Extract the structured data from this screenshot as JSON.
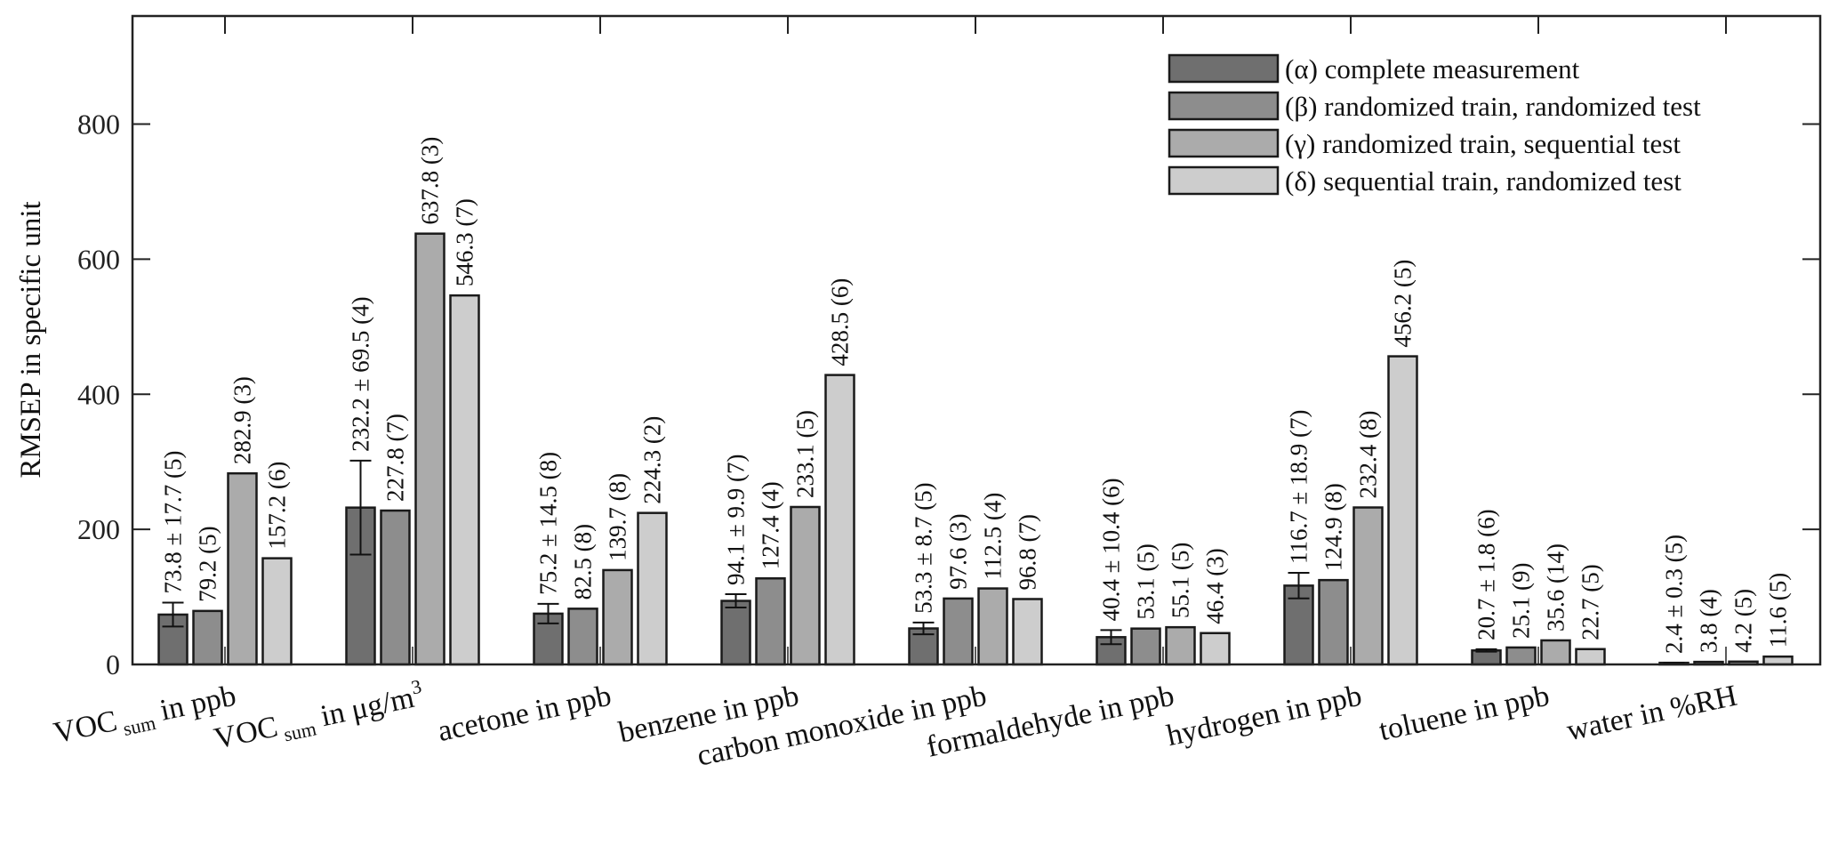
{
  "chart_data": {
    "type": "bar",
    "title": "",
    "xlabel": "",
    "ylabel": "RMSEP in specific unit",
    "ylim": [
      0,
      960
    ],
    "yticks": [
      0,
      200,
      400,
      600,
      800
    ],
    "grid": false,
    "legend_placement": "top-right",
    "categories": [
      {
        "pre": "VOC",
        "sub": "sum",
        "post": " in ppb",
        "sup": ""
      },
      {
        "pre": "VOC",
        "sub": "sum",
        "post": " in μg/m",
        "sup": "3"
      },
      {
        "pre": "acetone in ppb",
        "sub": "",
        "post": "",
        "sup": ""
      },
      {
        "pre": "benzene in ppb",
        "sub": "",
        "post": "",
        "sup": ""
      },
      {
        "pre": "carbon monoxide in ppb",
        "sub": "",
        "post": "",
        "sup": ""
      },
      {
        "pre": "formaldehyde in ppb",
        "sub": "",
        "post": "",
        "sup": ""
      },
      {
        "pre": "hydrogen in ppb",
        "sub": "",
        "post": "",
        "sup": ""
      },
      {
        "pre": "toluene in ppb",
        "sub": "",
        "post": "",
        "sup": ""
      },
      {
        "pre": "water in %RH",
        "sub": "",
        "post": "",
        "sup": ""
      }
    ],
    "series": [
      {
        "name": "(α) complete measurement",
        "color": "#6f6f6f",
        "values": [
          73.8,
          232.2,
          75.2,
          94.1,
          53.3,
          40.4,
          116.7,
          20.7,
          2.4
        ],
        "errors": [
          17.7,
          69.5,
          14.5,
          9.9,
          8.7,
          10.4,
          18.9,
          1.8,
          0.3
        ],
        "labels": [
          "73.8 ± 17.7 (5)",
          "232.2 ± 69.5 (4)",
          "75.2 ± 14.5 (8)",
          "94.1 ± 9.9 (7)",
          "53.3 ± 8.7 (5)",
          "40.4 ± 10.4 (6)",
          "116.7 ± 18.9 (7)",
          "20.7 ± 1.8 (6)",
          "2.4 ± 0.3 (5)"
        ]
      },
      {
        "name": "(β) randomized train, randomized test",
        "color": "#8d8d8d",
        "values": [
          79.2,
          227.8,
          82.5,
          127.4,
          97.6,
          53.1,
          124.9,
          25.1,
          3.8
        ],
        "labels": [
          "79.2 (5)",
          "227.8 (7)",
          "82.5 (8)",
          "127.4 (4)",
          "97.6 (3)",
          "53.1 (5)",
          "124.9 (8)",
          "25.1 (9)",
          "3.8 (4)"
        ]
      },
      {
        "name": "(γ) randomized train, sequential test",
        "color": "#ababab",
        "values": [
          282.9,
          637.8,
          139.7,
          233.1,
          112.5,
          55.1,
          232.4,
          35.6,
          4.2
        ],
        "labels": [
          "282.9 (3)",
          "637.8 (3)",
          "139.7 (8)",
          "233.1 (5)",
          "112.5 (4)",
          "55.1 (5)",
          "232.4 (8)",
          "35.6 (14)",
          "4.2 (5)"
        ]
      },
      {
        "name": "(δ) sequential train, randomized test",
        "color": "#cdcdcd",
        "values": [
          157.2,
          546.3,
          224.3,
          428.5,
          96.8,
          46.4,
          456.2,
          22.7,
          11.6
        ],
        "labels": [
          "157.2 (6)",
          "546.3 (7)",
          "224.3 (2)",
          "428.5 (6)",
          "96.8 (7)",
          "46.4 (3)",
          "456.2 (5)",
          "22.7 (5)",
          "11.6 (5)"
        ]
      }
    ]
  }
}
